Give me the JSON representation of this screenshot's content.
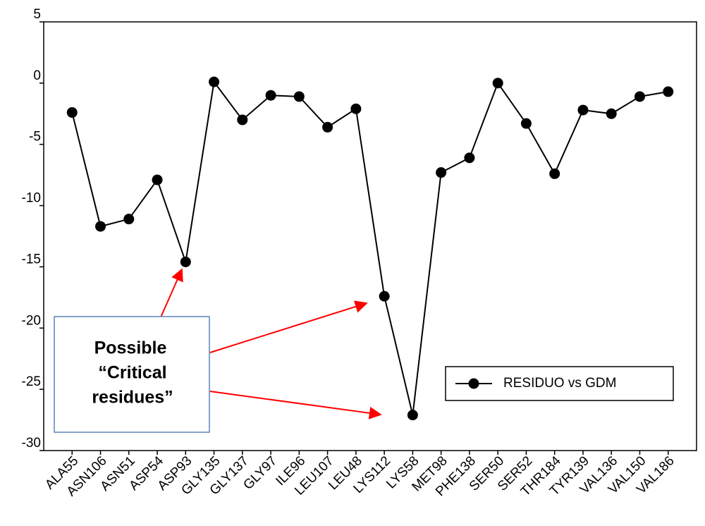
{
  "chart_data": {
    "type": "line",
    "categories": [
      "ALA55",
      "ASN106",
      "ASN51",
      "ASP54",
      "ASP93",
      "GLY135",
      "GLY137",
      "GLY97",
      "ILE96",
      "LEU107",
      "LEU48",
      "LYS112",
      "LYS58",
      "MET98",
      "PHE138",
      "SER50",
      "SER52",
      "THR184",
      "TYR139",
      "VAL136",
      "VAL150",
      "VAL186"
    ],
    "series": [
      {
        "name": "RESIDUO vs GDM",
        "color": "#000000",
        "values": [
          -2.4,
          -11.7,
          -11.1,
          -7.9,
          -14.6,
          0.1,
          -3.0,
          -1.0,
          -1.1,
          -3.6,
          -2.1,
          -17.4,
          -27.1,
          -7.3,
          -6.1,
          0.0,
          -3.3,
          -7.4,
          -2.2,
          -2.5,
          -1.1,
          -0.7
        ]
      }
    ],
    "ylim": [
      -30,
      5
    ],
    "yticks": [
      5,
      0,
      -5,
      -10,
      -15,
      -20,
      -25,
      -30
    ],
    "annotation": [
      "Possible",
      "“Critical",
      "residues”"
    ],
    "annotation_color": "#ff0000",
    "legend": "lower right"
  }
}
